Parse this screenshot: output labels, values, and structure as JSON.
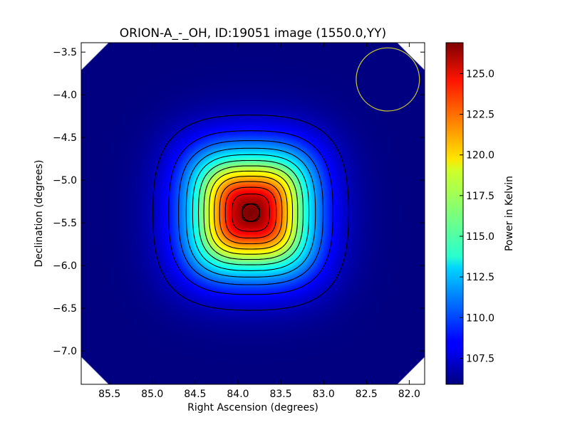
{
  "chart_data": {
    "type": "heatmap",
    "title": "ORION-A_-_OH, ID:19051 image (1550.0,YY)",
    "xlabel": "Right Ascension (degrees)",
    "ylabel": "Declination (degrees)",
    "colorbar_label": "Power in Kelvin",
    "colormap": "jet",
    "xlim": [
      85.83,
      81.82
    ],
    "ylim": [
      -7.39,
      -3.39
    ],
    "x_ticks": [
      85.5,
      85.0,
      84.5,
      84.0,
      83.5,
      83.0,
      82.5,
      82.0
    ],
    "x_tick_labels": [
      "85.5",
      "85.0",
      "84.5",
      "84.0",
      "83.5",
      "83.0",
      "82.5",
      "82.0"
    ],
    "y_ticks": [
      -3.5,
      -4.0,
      -4.5,
      -5.0,
      -5.5,
      -6.0,
      -6.5,
      -7.0
    ],
    "y_tick_labels": [
      "−3.5",
      "−4.0",
      "−4.5",
      "−5.0",
      "−5.5",
      "−6.0",
      "−6.5",
      "−7.0"
    ],
    "colorbar_range": [
      105.9,
      126.9
    ],
    "colorbar_ticks": [
      107.5,
      110.0,
      112.5,
      115.0,
      117.5,
      120.0,
      122.5,
      125.0
    ],
    "colorbar_tick_labels": [
      "107.5",
      "110.0",
      "112.5",
      "115.0",
      "117.5",
      "120.0",
      "122.5",
      "125.0"
    ],
    "source": {
      "ra": 83.85,
      "dec": -5.38,
      "peak_K": 126.9,
      "background_K": 105.9
    },
    "contour_levels_K": [
      107.2,
      108.8,
      110.4,
      112.0,
      113.6,
      115.2,
      116.8,
      118.4,
      120.0,
      121.6,
      123.2,
      124.8,
      126.4
    ],
    "beam": {
      "ra": 82.25,
      "dec": -3.82,
      "radius_deg": 0.37,
      "color": "#c8c830"
    },
    "corner_cutoff_deg": 0.32,
    "grid": false
  }
}
